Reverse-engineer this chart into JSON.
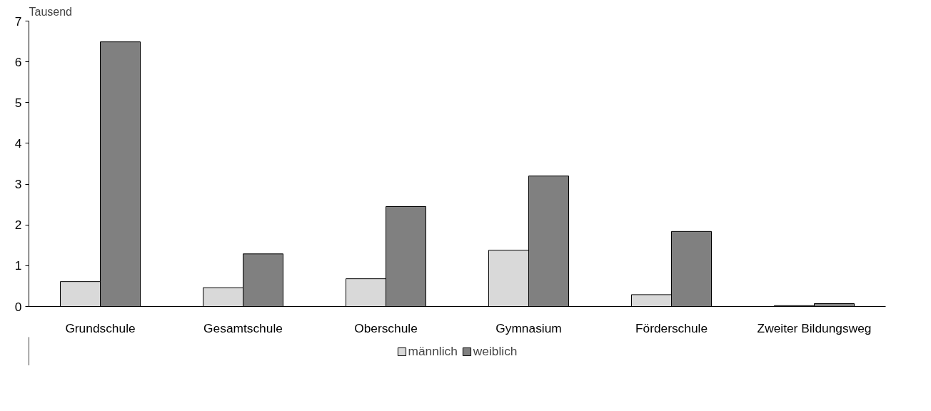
{
  "chart_data": {
    "type": "bar",
    "ylabel": "Tausend",
    "categories": [
      "Grundschule",
      "Gesamtschule",
      "Oberschule",
      "Gymnasium",
      "Förderschule",
      "Zweiter Bildungsweg"
    ],
    "series": [
      {
        "name": "männlich",
        "color": "#d9d9d9",
        "values": [
          0.61,
          0.46,
          0.68,
          1.38,
          0.29,
          0.02
        ]
      },
      {
        "name": "weiblich",
        "color": "#808080",
        "values": [
          6.49,
          1.29,
          2.45,
          3.2,
          1.84,
          0.07
        ]
      }
    ],
    "ylim": [
      0,
      7
    ],
    "yticks": [
      0,
      1,
      2,
      3,
      4,
      5,
      6,
      7
    ],
    "grid": false,
    "legend": "bottom"
  }
}
